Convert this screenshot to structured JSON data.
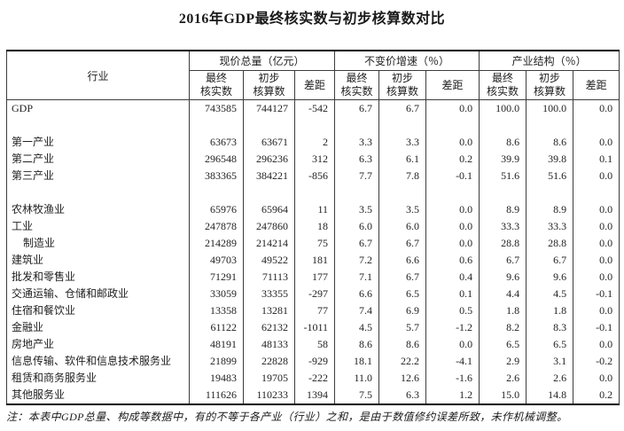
{
  "title": "2016年GDP最终核实数与初步核算数对比",
  "table": {
    "industry_header": "行业",
    "groups": [
      {
        "label": "现价总量（亿元）"
      },
      {
        "label": "不变价增速（％）"
      },
      {
        "label": "产业结构（％）"
      }
    ],
    "subcols": [
      {
        "line1": "最终",
        "line2": "核实数"
      },
      {
        "line1": "初步",
        "line2": "核算数"
      },
      {
        "line1": "差距",
        "line2": ""
      }
    ],
    "rows": [
      {
        "label": "GDP",
        "indent": false,
        "blank": false,
        "values": [
          "743585",
          "744127",
          "-542",
          "6.7",
          "6.7",
          "0.0",
          "100.0",
          "100.0",
          "0.0"
        ]
      },
      {
        "label": "",
        "indent": false,
        "blank": true,
        "values": [
          "",
          "",
          "",
          "",
          "",
          "",
          "",
          "",
          ""
        ]
      },
      {
        "label": "第一产业",
        "indent": false,
        "blank": false,
        "values": [
          "63673",
          "63671",
          "2",
          "3.3",
          "3.3",
          "0.0",
          "8.6",
          "8.6",
          "0.0"
        ]
      },
      {
        "label": "第二产业",
        "indent": false,
        "blank": false,
        "values": [
          "296548",
          "296236",
          "312",
          "6.3",
          "6.1",
          "0.2",
          "39.9",
          "39.8",
          "0.1"
        ]
      },
      {
        "label": "第三产业",
        "indent": false,
        "blank": false,
        "values": [
          "383365",
          "384221",
          "-856",
          "7.7",
          "7.8",
          "-0.1",
          "51.6",
          "51.6",
          "0.0"
        ]
      },
      {
        "label": "",
        "indent": false,
        "blank": true,
        "values": [
          "",
          "",
          "",
          "",
          "",
          "",
          "",
          "",
          ""
        ]
      },
      {
        "label": "农林牧渔业",
        "indent": false,
        "blank": false,
        "values": [
          "65976",
          "65964",
          "11",
          "3.5",
          "3.5",
          "0.0",
          "8.9",
          "8.9",
          "0.0"
        ]
      },
      {
        "label": "工业",
        "indent": false,
        "blank": false,
        "values": [
          "247878",
          "247860",
          "18",
          "6.0",
          "6.0",
          "0.0",
          "33.3",
          "33.3",
          "0.0"
        ]
      },
      {
        "label": "制造业",
        "indent": true,
        "blank": false,
        "values": [
          "214289",
          "214214",
          "75",
          "6.7",
          "6.7",
          "0.0",
          "28.8",
          "28.8",
          "0.0"
        ]
      },
      {
        "label": "建筑业",
        "indent": false,
        "blank": false,
        "values": [
          "49703",
          "49522",
          "181",
          "7.2",
          "6.6",
          "0.6",
          "6.7",
          "6.7",
          "0.0"
        ]
      },
      {
        "label": "批发和零售业",
        "indent": false,
        "blank": false,
        "values": [
          "71291",
          "71113",
          "177",
          "7.1",
          "6.7",
          "0.4",
          "9.6",
          "9.6",
          "0.0"
        ]
      },
      {
        "label": "交通运输、仓储和邮政业",
        "indent": false,
        "blank": false,
        "values": [
          "33059",
          "33355",
          "-297",
          "6.6",
          "6.5",
          "0.1",
          "4.4",
          "4.5",
          "-0.1"
        ]
      },
      {
        "label": "住宿和餐饮业",
        "indent": false,
        "blank": false,
        "values": [
          "13358",
          "13281",
          "77",
          "7.4",
          "6.9",
          "0.5",
          "1.8",
          "1.8",
          "0.0"
        ]
      },
      {
        "label": "金融业",
        "indent": false,
        "blank": false,
        "values": [
          "61122",
          "62132",
          "-1011",
          "4.5",
          "5.7",
          "-1.2",
          "8.2",
          "8.3",
          "-0.1"
        ]
      },
      {
        "label": "房地产业",
        "indent": false,
        "blank": false,
        "values": [
          "48191",
          "48133",
          "58",
          "8.6",
          "8.6",
          "0.0",
          "6.5",
          "6.5",
          "0.0"
        ]
      },
      {
        "label": "信息传输、软件和信息技术服务业",
        "indent": false,
        "blank": false,
        "values": [
          "21899",
          "22828",
          "-929",
          "18.1",
          "22.2",
          "-4.1",
          "2.9",
          "3.1",
          "-0.2"
        ]
      },
      {
        "label": "租赁和商务服务业",
        "indent": false,
        "blank": false,
        "values": [
          "19483",
          "19705",
          "-222",
          "11.0",
          "12.6",
          "-1.6",
          "2.6",
          "2.6",
          "0.0"
        ]
      },
      {
        "label": "其他服务业",
        "indent": false,
        "blank": false,
        "values": [
          "111626",
          "110233",
          "1394",
          "7.5",
          "6.3",
          "1.2",
          "15.0",
          "14.8",
          "0.2"
        ]
      }
    ]
  },
  "footnote": "注：本表中GDP总量、构成等数据中，有的不等于各产业（行业）之和，是由于数值修约误差所致，未作机械调整。",
  "colors": {
    "text": "#222222",
    "border_thin": "#3c3c3c",
    "border_thick": "#000000",
    "background": "#ffffff"
  }
}
